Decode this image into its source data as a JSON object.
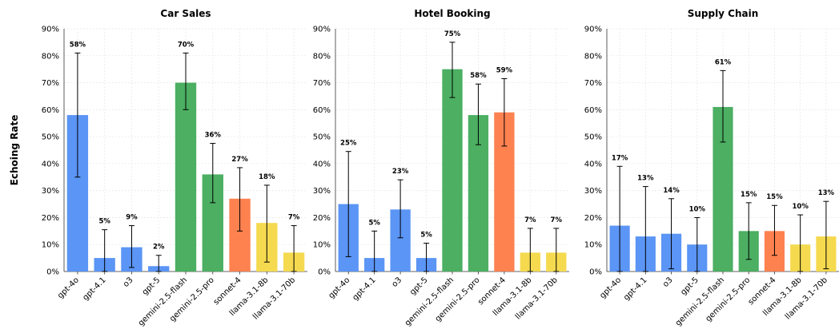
{
  "figure": {
    "ylabel": "Echoing Rate"
  },
  "colors": {
    "openai": "#5b95f5",
    "gemini": "#4caf62",
    "sonnet": "#fe8150",
    "llama": "#f5da4f"
  },
  "chart_data": [
    {
      "type": "bar",
      "title": "Car Sales",
      "categories": [
        "gpt-4o",
        "gpt-4.1",
        "o3",
        "gpt-5",
        "gemini-2.5-flash",
        "gemini-2.5-pro",
        "sonnet-4",
        "llama-3.1-8b",
        "llama-3.1-70b"
      ],
      "values": [
        58,
        5,
        9,
        2,
        70,
        36,
        27,
        18,
        7
      ],
      "value_labels": [
        "58%",
        "5%",
        "9%",
        "2%",
        "70%",
        "36%",
        "27%",
        "18%",
        "7%"
      ],
      "error_low": [
        35,
        0,
        1.5,
        0,
        60,
        25.5,
        15,
        3.5,
        0
      ],
      "error_high": [
        81,
        15.5,
        17,
        6,
        81,
        47.5,
        38.5,
        32,
        17
      ],
      "ylim": [
        0,
        90
      ],
      "yticks": [
        "0%",
        "10%",
        "20%",
        "30%",
        "40%",
        "50%",
        "60%",
        "70%",
        "80%",
        "90%"
      ],
      "grid": true
    },
    {
      "type": "bar",
      "title": "Hotel Booking",
      "categories": [
        "gpt-4o",
        "gpt-4.1",
        "o3",
        "gpt-5",
        "gemini-2.5-flash",
        "gemini-2.5-pro",
        "sonnet-4",
        "llama-3.1-8b",
        "llama-3.1-70b"
      ],
      "values": [
        25,
        5,
        23,
        5,
        75,
        58,
        59,
        7,
        7
      ],
      "value_labels": [
        "25%",
        "5%",
        "23%",
        "5%",
        "75%",
        "58%",
        "59%",
        "7%",
        "7%"
      ],
      "error_low": [
        5.5,
        0,
        12.5,
        0,
        64.5,
        47,
        46.5,
        0,
        0
      ],
      "error_high": [
        44.5,
        15,
        34,
        10.5,
        85,
        69.5,
        71.5,
        16,
        16
      ],
      "ylim": [
        0,
        90
      ],
      "yticks": [
        "0%",
        "10%",
        "20%",
        "30%",
        "40%",
        "50%",
        "60%",
        "70%",
        "80%",
        "90%"
      ],
      "grid": true
    },
    {
      "type": "bar",
      "title": "Supply Chain",
      "categories": [
        "gpt-4o",
        "gpt-4.1",
        "o3",
        "gpt-5",
        "gemini-2.5-flash",
        "gemini-2.5-pro",
        "sonnet-4",
        "llama-3.1-8b",
        "llama-3.1-70b"
      ],
      "values": [
        17,
        13,
        14,
        10,
        61,
        15,
        15,
        10,
        13
      ],
      "value_labels": [
        "17%",
        "13%",
        "14%",
        "10%",
        "61%",
        "15%",
        "15%",
        "10%",
        "13%"
      ],
      "error_low": [
        0,
        0,
        1,
        0,
        48,
        4.5,
        6,
        0,
        1
      ],
      "error_high": [
        39,
        31.5,
        27,
        20,
        74.5,
        25.5,
        24.5,
        21,
        26
      ],
      "ylim": [
        0,
        90
      ],
      "yticks": [
        "0%",
        "10%",
        "20%",
        "30%",
        "40%",
        "50%",
        "60%",
        "70%",
        "80%",
        "90%"
      ],
      "grid": true
    }
  ]
}
